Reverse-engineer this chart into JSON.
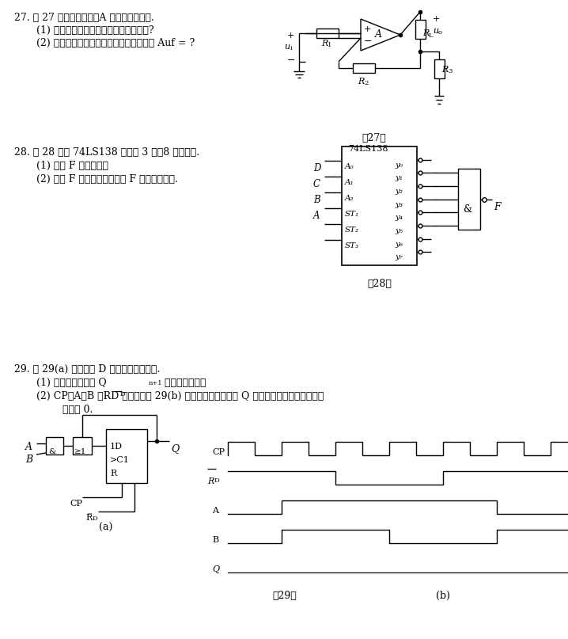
{
  "bg": "#ffffff",
  "q27_l1": "27. 题 27 图所示电路中，A 为理想集成运放.",
  "q27_l2": "    (1) 该电路中引入哪种方式的交流负反馈?",
  "q27_l3": "    (2) 估算满足深度负反馈时的电压放大倍数 Auf = ?",
  "q28_l1": "28. 题 28 图中 74LS138 为集成 3 线－8 线译码器.",
  "q28_l2": "    (1) 写出 F 的表达式：",
  "q28_l3": "    (2) 填写 F 的卡诺图，并写出 F 的最简与或式.",
  "q29_l1": "29. 题 29(a) 图为边沿 D 触发器构成的电路.",
  "q29_l2": "    (1) 写出触发器次态 Q",
  "q29_l2b": "n+1",
  "q29_l2c": " 的最简表达式；",
  "q29_l3": "    (2) CP、A、B 及RD 的波形如题 29(b) 图所示，试对应画出 Q 端的波形，设触发器的起始",
  "q29_l4": "        状态为 0.",
  "label27": "隒27图",
  "label28": "隒28图",
  "label29": "隒29图"
}
